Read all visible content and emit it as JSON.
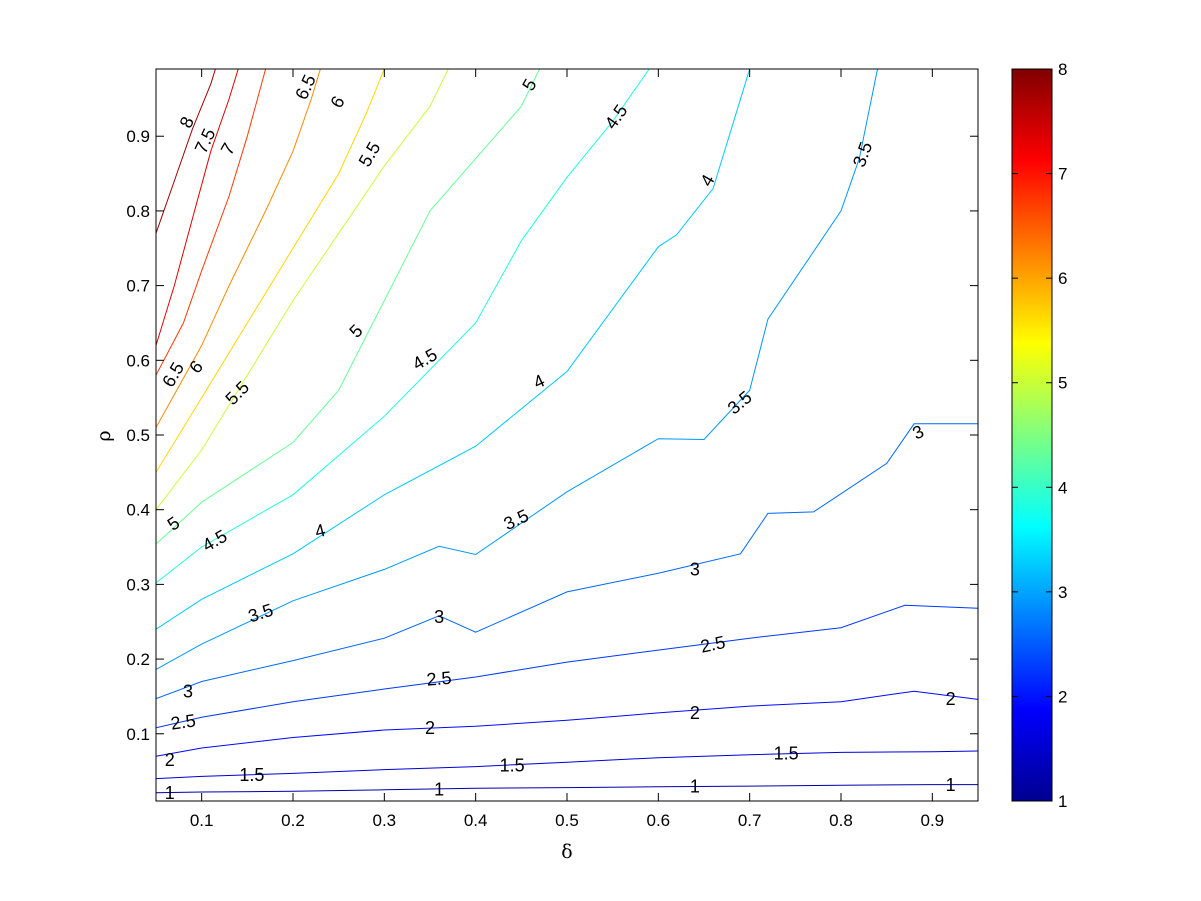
{
  "chart_data": {
    "type": "contour",
    "title": "",
    "xlabel": "δ",
    "ylabel": "ρ",
    "xlim": [
      0.05,
      0.95
    ],
    "ylim": [
      0.01,
      0.99
    ],
    "x_ticks": [
      0.1,
      0.2,
      0.3,
      0.4,
      0.5,
      0.6,
      0.7,
      0.8,
      0.9
    ],
    "x_tick_labels": [
      "0.1",
      "0.2",
      "0.3",
      "0.4",
      "0.5",
      "0.6",
      "0.7",
      "0.8",
      "0.9"
    ],
    "y_ticks": [
      0.1,
      0.2,
      0.3,
      0.4,
      0.5,
      0.6,
      0.7,
      0.8,
      0.9
    ],
    "y_tick_labels": [
      "0.1",
      "0.2",
      "0.3",
      "0.4",
      "0.5",
      "0.6",
      "0.7",
      "0.8",
      "0.9"
    ],
    "grid": false,
    "colormap": "jet",
    "colorbar": {
      "range": [
        1,
        8
      ],
      "ticks": [
        1,
        2,
        3,
        4,
        5,
        6,
        7,
        8
      ],
      "tick_labels": [
        "1",
        "2",
        "3",
        "4",
        "5",
        "6",
        "7",
        "8"
      ],
      "placement": "right"
    },
    "contours": [
      {
        "level": 1,
        "color": "#0000ad",
        "points": [
          [
            0.05,
            0.021
          ],
          [
            0.1,
            0.022
          ],
          [
            0.2,
            0.023
          ],
          [
            0.3,
            0.025
          ],
          [
            0.4,
            0.027
          ],
          [
            0.5,
            0.028
          ],
          [
            0.6,
            0.029
          ],
          [
            0.7,
            0.03
          ],
          [
            0.8,
            0.031
          ],
          [
            0.9,
            0.032
          ],
          [
            0.95,
            0.032
          ]
        ]
      },
      {
        "level": 1.5,
        "color": "#0000d8",
        "points": [
          [
            0.05,
            0.04
          ],
          [
            0.1,
            0.043
          ],
          [
            0.2,
            0.047
          ],
          [
            0.3,
            0.052
          ],
          [
            0.4,
            0.056
          ],
          [
            0.5,
            0.062
          ],
          [
            0.6,
            0.068
          ],
          [
            0.7,
            0.072
          ],
          [
            0.8,
            0.075
          ],
          [
            0.9,
            0.076
          ],
          [
            0.95,
            0.077
          ]
        ]
      },
      {
        "level": 2,
        "color": "#0008ff",
        "points": [
          [
            0.05,
            0.07
          ],
          [
            0.1,
            0.081
          ],
          [
            0.2,
            0.095
          ],
          [
            0.3,
            0.105
          ],
          [
            0.4,
            0.11
          ],
          [
            0.5,
            0.118
          ],
          [
            0.6,
            0.128
          ],
          [
            0.7,
            0.137
          ],
          [
            0.8,
            0.143
          ],
          [
            0.88,
            0.157
          ],
          [
            0.95,
            0.146
          ]
        ]
      },
      {
        "level": 2.5,
        "color": "#0038ff",
        "points": [
          [
            0.05,
            0.108
          ],
          [
            0.1,
            0.122
          ],
          [
            0.2,
            0.143
          ],
          [
            0.3,
            0.16
          ],
          [
            0.4,
            0.176
          ],
          [
            0.5,
            0.196
          ],
          [
            0.6,
            0.212
          ],
          [
            0.7,
            0.228
          ],
          [
            0.8,
            0.242
          ],
          [
            0.87,
            0.272
          ],
          [
            0.95,
            0.268
          ]
        ]
      },
      {
        "level": 3,
        "color": "#0068ff",
        "points": [
          [
            0.05,
            0.147
          ],
          [
            0.1,
            0.17
          ],
          [
            0.2,
            0.198
          ],
          [
            0.3,
            0.228
          ],
          [
            0.36,
            0.258
          ],
          [
            0.4,
            0.236
          ],
          [
            0.5,
            0.29
          ],
          [
            0.6,
            0.315
          ],
          [
            0.69,
            0.341
          ],
          [
            0.72,
            0.395
          ],
          [
            0.77,
            0.397
          ],
          [
            0.85,
            0.462
          ],
          [
            0.88,
            0.515
          ],
          [
            0.95,
            0.515
          ]
        ]
      },
      {
        "level": 3.5,
        "color": "#0098ff",
        "points": [
          [
            0.05,
            0.186
          ],
          [
            0.1,
            0.22
          ],
          [
            0.2,
            0.278
          ],
          [
            0.3,
            0.32
          ],
          [
            0.36,
            0.351
          ],
          [
            0.4,
            0.34
          ],
          [
            0.5,
            0.424
          ],
          [
            0.6,
            0.495
          ],
          [
            0.65,
            0.494
          ],
          [
            0.7,
            0.56
          ],
          [
            0.72,
            0.655
          ],
          [
            0.8,
            0.8
          ],
          [
            0.82,
            0.87
          ],
          [
            0.84,
            0.99
          ]
        ]
      },
      {
        "level": 4,
        "color": "#00c8ff",
        "points": [
          [
            0.05,
            0.24
          ],
          [
            0.1,
            0.28
          ],
          [
            0.2,
            0.341
          ],
          [
            0.3,
            0.42
          ],
          [
            0.4,
            0.485
          ],
          [
            0.5,
            0.585
          ],
          [
            0.6,
            0.752
          ],
          [
            0.62,
            0.768
          ],
          [
            0.66,
            0.83
          ],
          [
            0.7,
            0.99
          ]
        ]
      },
      {
        "level": 4.5,
        "color": "#20ffe0",
        "points": [
          [
            0.05,
            0.302
          ],
          [
            0.1,
            0.35
          ],
          [
            0.2,
            0.42
          ],
          [
            0.3,
            0.525
          ],
          [
            0.4,
            0.65
          ],
          [
            0.45,
            0.76
          ],
          [
            0.5,
            0.845
          ],
          [
            0.55,
            0.92
          ],
          [
            0.59,
            0.99
          ]
        ]
      },
      {
        "level": 5,
        "color": "#68ff98",
        "points": [
          [
            0.05,
            0.354
          ],
          [
            0.1,
            0.41
          ],
          [
            0.2,
            0.49
          ],
          [
            0.25,
            0.56
          ],
          [
            0.3,
            0.68
          ],
          [
            0.35,
            0.8
          ],
          [
            0.4,
            0.87
          ],
          [
            0.45,
            0.94
          ],
          [
            0.47,
            0.99
          ]
        ]
      },
      {
        "level": 5.5,
        "color": "#c8ff38",
        "points": [
          [
            0.05,
            0.4
          ],
          [
            0.1,
            0.48
          ],
          [
            0.15,
            0.58
          ],
          [
            0.2,
            0.68
          ],
          [
            0.25,
            0.77
          ],
          [
            0.3,
            0.86
          ],
          [
            0.35,
            0.94
          ],
          [
            0.37,
            0.99
          ]
        ]
      },
      {
        "level": 6,
        "color": "#ffd800",
        "points": [
          [
            0.05,
            0.45
          ],
          [
            0.1,
            0.55
          ],
          [
            0.15,
            0.65
          ],
          [
            0.2,
            0.75
          ],
          [
            0.25,
            0.85
          ],
          [
            0.28,
            0.93
          ],
          [
            0.3,
            0.99
          ]
        ]
      },
      {
        "level": 6.5,
        "color": "#ff8800",
        "points": [
          [
            0.05,
            0.51
          ],
          [
            0.1,
            0.62
          ],
          [
            0.13,
            0.7
          ],
          [
            0.17,
            0.8
          ],
          [
            0.2,
            0.88
          ],
          [
            0.22,
            0.95
          ],
          [
            0.23,
            0.99
          ]
        ]
      },
      {
        "level": 7,
        "color": "#ff3800",
        "points": [
          [
            0.05,
            0.58
          ],
          [
            0.08,
            0.65
          ],
          [
            0.1,
            0.72
          ],
          [
            0.13,
            0.82
          ],
          [
            0.15,
            0.9
          ],
          [
            0.17,
            0.99
          ]
        ]
      },
      {
        "level": 7.5,
        "color": "#e00000",
        "points": [
          [
            0.05,
            0.62
          ],
          [
            0.07,
            0.7
          ],
          [
            0.09,
            0.79
          ],
          [
            0.11,
            0.88
          ],
          [
            0.13,
            0.95
          ],
          [
            0.14,
            0.99
          ]
        ]
      },
      {
        "level": 8,
        "color": "#a00000",
        "points": [
          [
            0.05,
            0.77
          ],
          [
            0.07,
            0.84
          ],
          [
            0.09,
            0.91
          ],
          [
            0.11,
            0.97
          ],
          [
            0.115,
            0.99
          ]
        ]
      }
    ],
    "contour_labels": [
      {
        "text": "1",
        "x": 0.065,
        "y": 0.019,
        "angle": 0
      },
      {
        "text": "1",
        "x": 0.36,
        "y": 0.024,
        "angle": 0
      },
      {
        "text": "1",
        "x": 0.64,
        "y": 0.028,
        "angle": 0
      },
      {
        "text": "1",
        "x": 0.92,
        "y": 0.03,
        "angle": 0
      },
      {
        "text": "1.5",
        "x": 0.155,
        "y": 0.043,
        "angle": 0
      },
      {
        "text": "1.5",
        "x": 0.44,
        "y": 0.056,
        "angle": 0
      },
      {
        "text": "1.5",
        "x": 0.74,
        "y": 0.072,
        "angle": 0
      },
      {
        "text": "2",
        "x": 0.065,
        "y": 0.063,
        "angle": 0
      },
      {
        "text": "2",
        "x": 0.35,
        "y": 0.106,
        "angle": 0
      },
      {
        "text": "2",
        "x": 0.64,
        "y": 0.126,
        "angle": 0
      },
      {
        "text": "2",
        "x": 0.92,
        "y": 0.145,
        "angle": 0
      },
      {
        "text": "2.5",
        "x": 0.08,
        "y": 0.114,
        "angle": -8
      },
      {
        "text": "2.5",
        "x": 0.36,
        "y": 0.172,
        "angle": -5
      },
      {
        "text": "2.5",
        "x": 0.66,
        "y": 0.218,
        "angle": -12
      },
      {
        "text": "3",
        "x": 0.085,
        "y": 0.155,
        "angle": 0
      },
      {
        "text": "3",
        "x": 0.36,
        "y": 0.255,
        "angle": 0
      },
      {
        "text": "3",
        "x": 0.64,
        "y": 0.318,
        "angle": 0
      },
      {
        "text": "3",
        "x": 0.885,
        "y": 0.502,
        "angle": -25
      },
      {
        "text": "3.5",
        "x": 0.165,
        "y": 0.26,
        "angle": -18
      },
      {
        "text": "3.5",
        "x": 0.445,
        "y": 0.385,
        "angle": -25
      },
      {
        "text": "3.5",
        "x": 0.69,
        "y": 0.542,
        "angle": -40
      },
      {
        "text": "3.5",
        "x": 0.825,
        "y": 0.875,
        "angle": -70
      },
      {
        "text": "4",
        "x": 0.23,
        "y": 0.37,
        "angle": -15
      },
      {
        "text": "4",
        "x": 0.47,
        "y": 0.57,
        "angle": -25
      },
      {
        "text": "4",
        "x": 0.655,
        "y": 0.84,
        "angle": -60
      },
      {
        "text": "4.5",
        "x": 0.115,
        "y": 0.357,
        "angle": -30
      },
      {
        "text": "4.5",
        "x": 0.345,
        "y": 0.6,
        "angle": -30
      },
      {
        "text": "4.5",
        "x": 0.555,
        "y": 0.925,
        "angle": -55
      },
      {
        "text": "5",
        "x": 0.07,
        "y": 0.38,
        "angle": -35
      },
      {
        "text": "5",
        "x": 0.27,
        "y": 0.638,
        "angle": -45
      },
      {
        "text": "5",
        "x": 0.46,
        "y": 0.968,
        "angle": -60
      },
      {
        "text": "5.5",
        "x": 0.14,
        "y": 0.555,
        "angle": -45
      },
      {
        "text": "5.5",
        "x": 0.285,
        "y": 0.875,
        "angle": -60
      },
      {
        "text": "6",
        "x": 0.095,
        "y": 0.59,
        "angle": -50
      },
      {
        "text": "6",
        "x": 0.25,
        "y": 0.945,
        "angle": -60
      },
      {
        "text": "6.5",
        "x": 0.07,
        "y": 0.58,
        "angle": -60
      },
      {
        "text": "6.5",
        "x": 0.215,
        "y": 0.965,
        "angle": -65
      },
      {
        "text": "7",
        "x": 0.13,
        "y": 0.882,
        "angle": -60
      },
      {
        "text": "7.5",
        "x": 0.105,
        "y": 0.893,
        "angle": -65
      },
      {
        "text": "8",
        "x": 0.085,
        "y": 0.918,
        "angle": -65
      }
    ]
  }
}
